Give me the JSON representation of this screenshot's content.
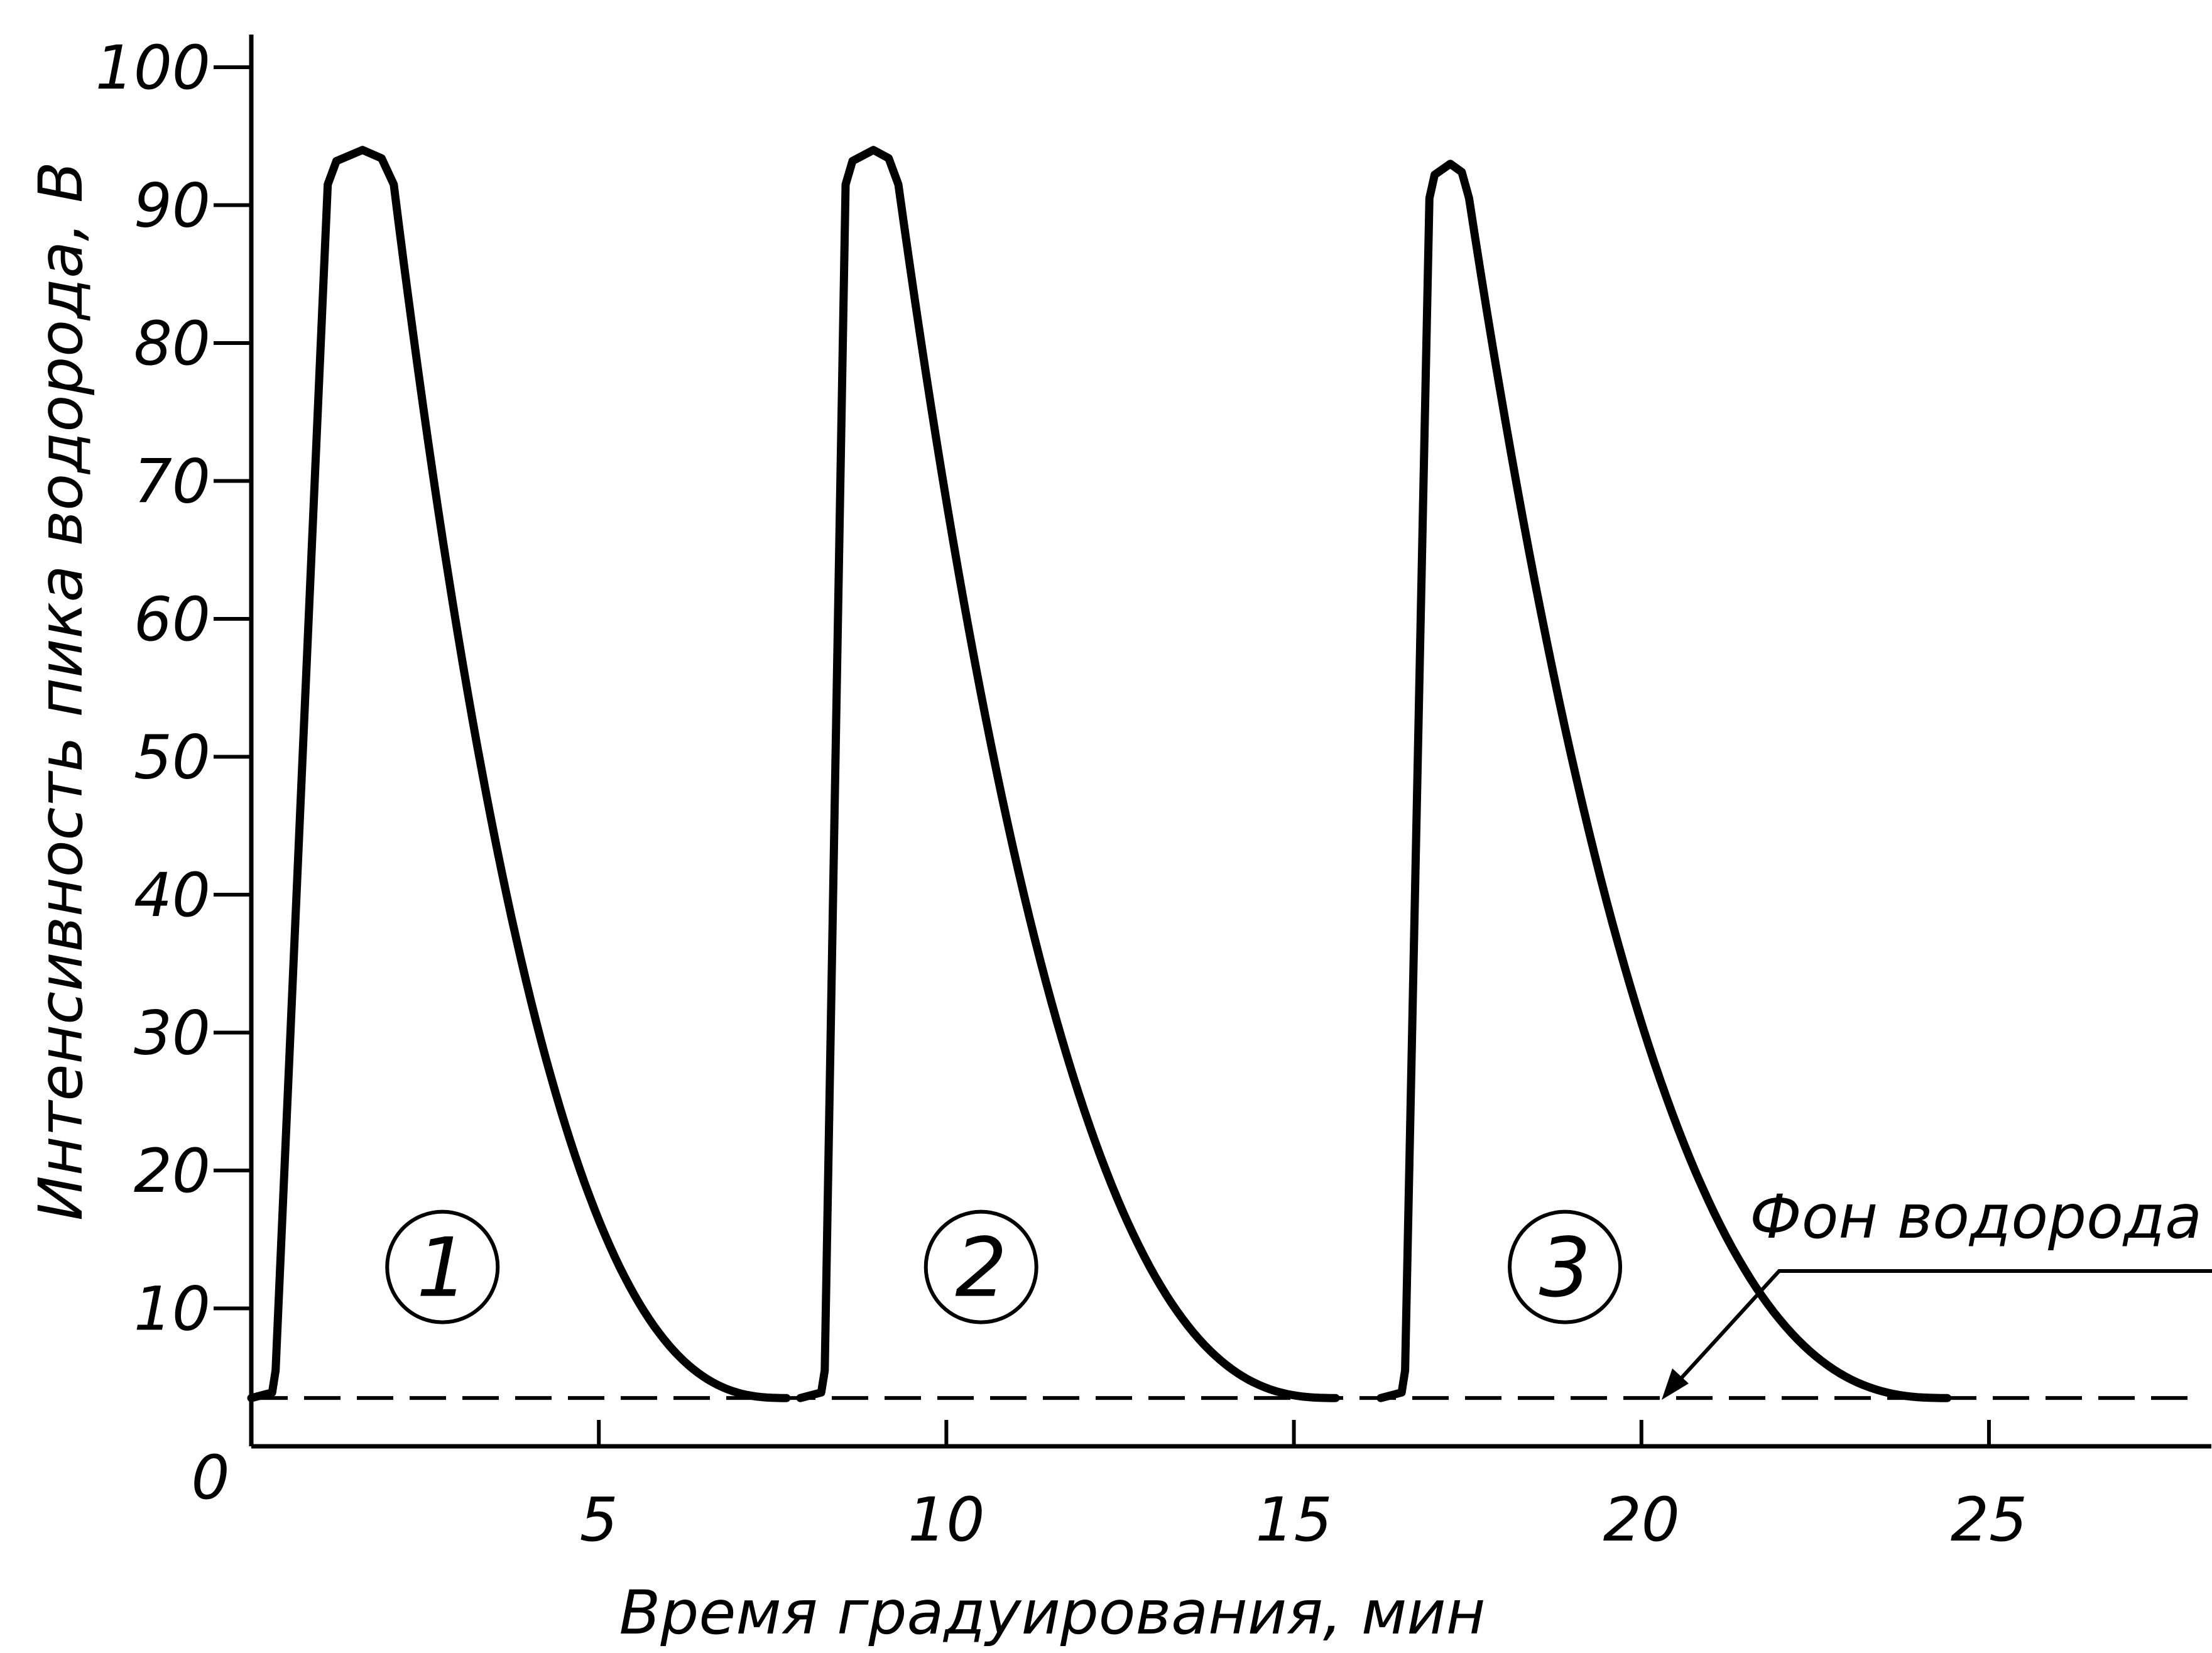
{
  "chart_data": {
    "type": "line",
    "title": "",
    "xlabel": "Время градуирования, мин",
    "ylabel": "Интенсивность пика водорода, В",
    "xlim": [
      0,
      28.2
    ],
    "ylim": [
      0,
      100
    ],
    "x_ticks": [
      5,
      10,
      15,
      20,
      25
    ],
    "y_ticks": [
      10,
      20,
      30,
      40,
      50,
      60,
      70,
      80,
      90,
      100
    ],
    "origin_label": "0",
    "grid": false,
    "legend": "none",
    "baseline": {
      "label": "Фон водорода",
      "value": 3.5,
      "style": "dashed"
    },
    "series": [
      {
        "label": "1",
        "rise_start": 0.35,
        "rise_end": 1.1,
        "peak_x": 1.6,
        "peak_y": 94,
        "end_x": 7.7,
        "label_pos": {
          "x": 2.75,
          "y": 13
        }
      },
      {
        "label": "2",
        "rise_start": 8.25,
        "rise_end": 8.55,
        "peak_x": 8.95,
        "peak_y": 94,
        "end_x": 15.6,
        "label_pos": {
          "x": 10.5,
          "y": 13
        }
      },
      {
        "label": "3",
        "rise_start": 16.6,
        "rise_end": 16.95,
        "peak_x": 17.25,
        "peak_y": 93,
        "end_x": 24.4,
        "label_pos": {
          "x": 18.9,
          "y": 13
        }
      }
    ]
  }
}
